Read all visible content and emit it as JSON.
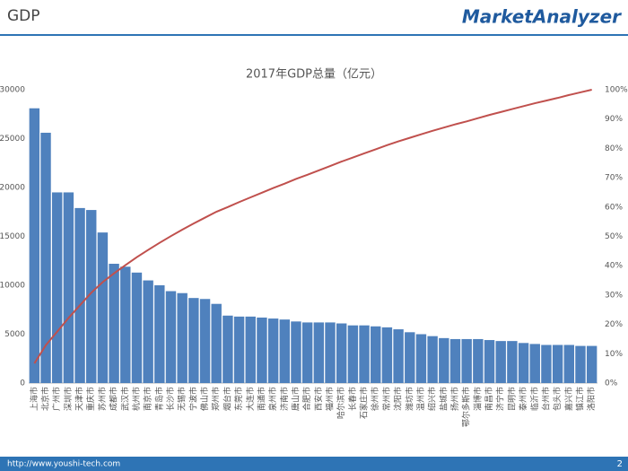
{
  "header": {
    "title": "GDP",
    "logo": "MarketAnalyzer"
  },
  "footer": {
    "url": "http://www.youshi-tech.com",
    "page": "2"
  },
  "chart_data": {
    "type": "bar",
    "title": "2017年GDP总量（亿元）",
    "categories": [
      "上海市",
      "北京市",
      "广州市",
      "深圳市",
      "天津市",
      "重庆市",
      "苏州市",
      "成都市",
      "武汉市",
      "杭州市",
      "南京市",
      "青岛市",
      "长沙市",
      "无锡市",
      "宁波市",
      "佛山市",
      "郑州市",
      "烟台市",
      "东莞市",
      "大连市",
      "南通市",
      "泉州市",
      "济南市",
      "唐山市",
      "合肥市",
      "西安市",
      "福州市",
      "哈尔滨市",
      "长春市",
      "石家庄市",
      "徐州市",
      "常州市",
      "沈阳市",
      "潍坊市",
      "温州市",
      "绍兴市",
      "盐城市",
      "扬州市",
      "鄂尔多斯市",
      "淄博市",
      "南昌市",
      "济宁市",
      "昆明市",
      "泰州市",
      "临沂市",
      "台州市",
      "包头市",
      "嘉兴市",
      "镇江市",
      "洛阳市"
    ],
    "series": [
      {
        "type": "bar",
        "color": "#4f81bd",
        "values": [
          28100,
          25600,
          19500,
          19500,
          17900,
          17700,
          15400,
          12200,
          11900,
          11300,
          10500,
          10000,
          9400,
          9200,
          8700,
          8600,
          8100,
          6900,
          6800,
          6800,
          6700,
          6600,
          6500,
          6300,
          6200,
          6200,
          6200,
          6100,
          5900,
          5900,
          5800,
          5700,
          5500,
          5200,
          5000,
          4800,
          4600,
          4500,
          4500,
          4500,
          4400,
          4300,
          4300,
          4100,
          4000,
          3900,
          3900,
          3900,
          3800,
          3800
        ]
      },
      {
        "type": "line",
        "axis": "y2",
        "color": "#c0504d",
        "values": [
          6.7,
          12.9,
          17.5,
          22.2,
          26.5,
          30.8,
          34.4,
          37.4,
          40.2,
          42.9,
          45.4,
          47.8,
          50.1,
          52.3,
          54.4,
          56.4,
          58.4,
          60.0,
          61.7,
          63.3,
          64.9,
          66.5,
          68.0,
          69.6,
          71.0,
          72.5,
          74.0,
          75.5,
          76.9,
          78.3,
          79.7,
          81.1,
          82.4,
          83.6,
          84.8,
          86.0,
          87.1,
          88.2,
          89.2,
          90.3,
          91.4,
          92.4,
          93.4,
          94.4,
          95.4,
          96.3,
          97.2,
          98.2,
          99.1,
          100
        ]
      }
    ],
    "ylim": [
      0,
      30000
    ],
    "yticks": [
      0,
      5000,
      10000,
      15000,
      20000,
      25000,
      30000
    ],
    "y2lim": [
      0,
      100
    ],
    "y2ticks": [
      {
        "value": 0,
        "label": "0%"
      },
      {
        "value": 10,
        "label": "10%"
      },
      {
        "value": 20,
        "label": "20%"
      },
      {
        "value": 30,
        "label": "30%"
      },
      {
        "value": 40,
        "label": "40%"
      },
      {
        "value": 50,
        "label": "50%"
      },
      {
        "value": 60,
        "label": "60%"
      },
      {
        "value": 70,
        "label": "70%"
      },
      {
        "value": 80,
        "label": "80%"
      },
      {
        "value": 90,
        "label": "90%"
      },
      {
        "value": 100,
        "label": "100%"
      }
    ]
  }
}
